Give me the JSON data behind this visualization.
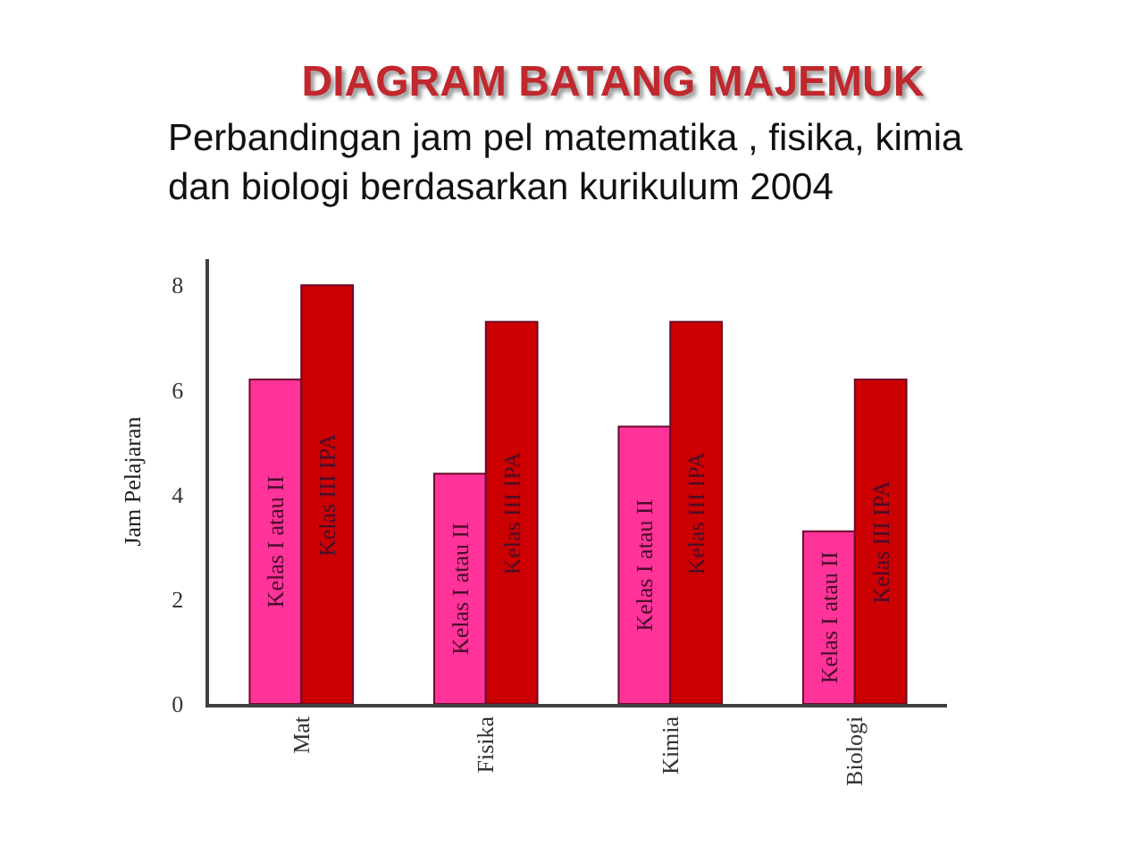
{
  "chart_data": {
    "type": "bar",
    "title": "DIAGRAM BATANG MAJEMUK",
    "subtitle": "Perbandingan jam pel matematika , fisika, kimia\ndan biologi berdasarkan kurikulum 2004",
    "ylabel": "Jam Pelajaran",
    "categories": [
      "Mat",
      "Fisika",
      "Kimia",
      "Biologi"
    ],
    "series": [
      {
        "name": "Kelas I atau II",
        "color": "#ff3399",
        "values": [
          6.2,
          4.4,
          5.3,
          3.3
        ]
      },
      {
        "name": "Kelas III IPA",
        "color": "#cc0000",
        "values": [
          8,
          7.3,
          7.3,
          6.2
        ]
      }
    ],
    "ylim": [
      0,
      8.5
    ],
    "yticks": [
      0,
      2,
      4,
      6,
      8
    ]
  }
}
